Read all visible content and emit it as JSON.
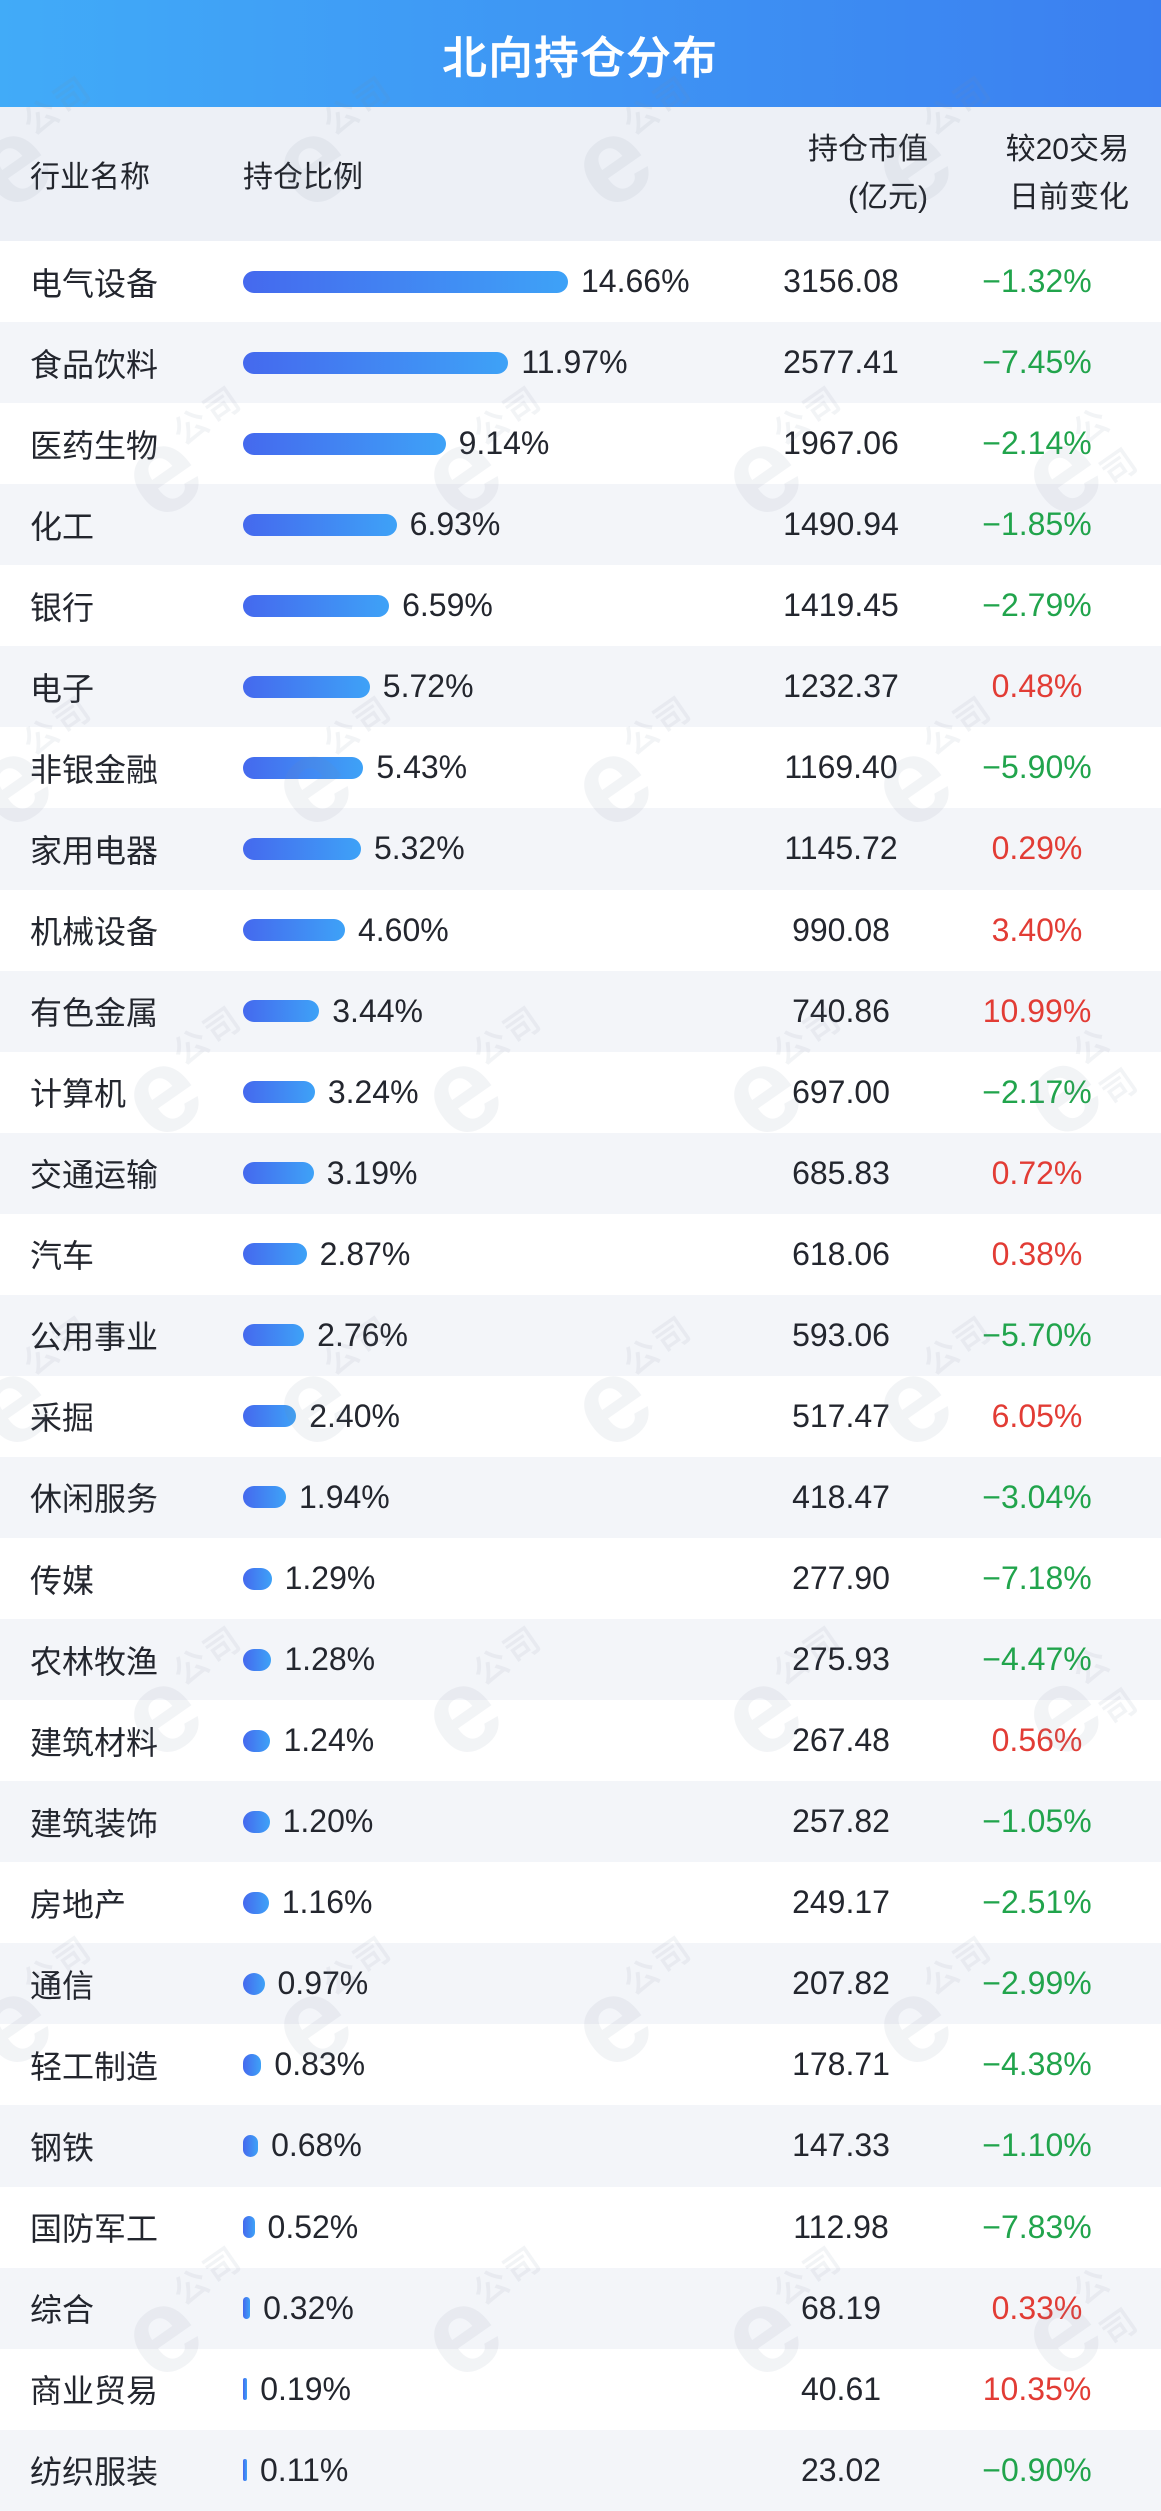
{
  "title": "北向持仓分布",
  "watermark": {
    "letter": "e",
    "text": "公司"
  },
  "columns": {
    "industry": "行业名称",
    "ratio": "持仓比例",
    "value_line1": "持仓市值",
    "value_line2": "(亿元)",
    "change_line1": "较20交易",
    "change_line2": "日前变化"
  },
  "colors": {
    "banner_start": "#41abf8",
    "banner_end": "#3b7ff0",
    "bar_start": "#4569ee",
    "bar_end": "#3ea2f7",
    "up_red": "#e23c35",
    "down_green": "#21a44c",
    "alt_row_bg": "#f3f5f9",
    "header_bg": "#edf0f6"
  },
  "rows": [
    {
      "name": "电气设备",
      "ratio": "14.66%",
      "value": "3156.08",
      "change": "−1.32%",
      "dir": "down"
    },
    {
      "name": "食品饮料",
      "ratio": "11.97%",
      "value": "2577.41",
      "change": "−7.45%",
      "dir": "down"
    },
    {
      "name": "医药生物",
      "ratio": "9.14%",
      "value": "1967.06",
      "change": "−2.14%",
      "dir": "down"
    },
    {
      "name": "化工",
      "ratio": "6.93%",
      "value": "1490.94",
      "change": "−1.85%",
      "dir": "down"
    },
    {
      "name": "银行",
      "ratio": "6.59%",
      "value": "1419.45",
      "change": "−2.79%",
      "dir": "down"
    },
    {
      "name": "电子",
      "ratio": "5.72%",
      "value": "1232.37",
      "change": "0.48%",
      "dir": "up"
    },
    {
      "name": "非银金融",
      "ratio": "5.43%",
      "value": "1169.40",
      "change": "−5.90%",
      "dir": "down"
    },
    {
      "name": "家用电器",
      "ratio": "5.32%",
      "value": "1145.72",
      "change": "0.29%",
      "dir": "up"
    },
    {
      "name": "机械设备",
      "ratio": "4.60%",
      "value": "990.08",
      "change": "3.40%",
      "dir": "up"
    },
    {
      "name": "有色金属",
      "ratio": "3.44%",
      "value": "740.86",
      "change": "10.99%",
      "dir": "up"
    },
    {
      "name": "计算机",
      "ratio": "3.24%",
      "value": "697.00",
      "change": "−2.17%",
      "dir": "down"
    },
    {
      "name": "交通运输",
      "ratio": "3.19%",
      "value": "685.83",
      "change": "0.72%",
      "dir": "up"
    },
    {
      "name": "汽车",
      "ratio": "2.87%",
      "value": "618.06",
      "change": "0.38%",
      "dir": "up"
    },
    {
      "name": "公用事业",
      "ratio": "2.76%",
      "value": "593.06",
      "change": "−5.70%",
      "dir": "down"
    },
    {
      "name": "采掘",
      "ratio": "2.40%",
      "value": "517.47",
      "change": "6.05%",
      "dir": "up"
    },
    {
      "name": "休闲服务",
      "ratio": "1.94%",
      "value": "418.47",
      "change": "−3.04%",
      "dir": "down"
    },
    {
      "name": "传媒",
      "ratio": "1.29%",
      "value": "277.90",
      "change": "−7.18%",
      "dir": "down"
    },
    {
      "name": "农林牧渔",
      "ratio": "1.28%",
      "value": "275.93",
      "change": "−4.47%",
      "dir": "down"
    },
    {
      "name": "建筑材料",
      "ratio": "1.24%",
      "value": "267.48",
      "change": "0.56%",
      "dir": "up"
    },
    {
      "name": "建筑装饰",
      "ratio": "1.20%",
      "value": "257.82",
      "change": "−1.05%",
      "dir": "down"
    },
    {
      "name": "房地产",
      "ratio": "1.16%",
      "value": "249.17",
      "change": "−2.51%",
      "dir": "down"
    },
    {
      "name": "通信",
      "ratio": "0.97%",
      "value": "207.82",
      "change": "−2.99%",
      "dir": "down"
    },
    {
      "name": "轻工制造",
      "ratio": "0.83%",
      "value": "178.71",
      "change": "−4.38%",
      "dir": "down"
    },
    {
      "name": "钢铁",
      "ratio": "0.68%",
      "value": "147.33",
      "change": "−1.10%",
      "dir": "down"
    },
    {
      "name": "国防军工",
      "ratio": "0.52%",
      "value": "112.98",
      "change": "−7.83%",
      "dir": "down"
    },
    {
      "name": "综合",
      "ratio": "0.32%",
      "value": "68.19",
      "change": "0.33%",
      "dir": "up"
    },
    {
      "name": "商业贸易",
      "ratio": "0.19%",
      "value": "40.61",
      "change": "10.35%",
      "dir": "up"
    },
    {
      "name": "纺织服装",
      "ratio": "0.11%",
      "value": "23.02",
      "change": "−0.90%",
      "dir": "down"
    }
  ],
  "chart_data": {
    "type": "bar",
    "title": "北向持仓分布",
    "orientation": "horizontal",
    "categories": [
      "电气设备",
      "食品饮料",
      "医药生物",
      "化工",
      "银行",
      "电子",
      "非银金融",
      "家用电器",
      "机械设备",
      "有色金属",
      "计算机",
      "交通运输",
      "汽车",
      "公用事业",
      "采掘",
      "休闲服务",
      "传媒",
      "农林牧渔",
      "建筑材料",
      "建筑装饰",
      "房地产",
      "通信",
      "轻工制造",
      "钢铁",
      "国防军工",
      "综合",
      "商业贸易",
      "纺织服装"
    ],
    "series": [
      {
        "name": "持仓比例(%)",
        "values": [
          14.66,
          11.97,
          9.14,
          6.93,
          6.59,
          5.72,
          5.43,
          5.32,
          4.6,
          3.44,
          3.24,
          3.19,
          2.87,
          2.76,
          2.4,
          1.94,
          1.29,
          1.28,
          1.24,
          1.2,
          1.16,
          0.97,
          0.83,
          0.68,
          0.52,
          0.32,
          0.19,
          0.11
        ]
      },
      {
        "name": "持仓市值(亿元)",
        "values": [
          3156.08,
          2577.41,
          1967.06,
          1490.94,
          1419.45,
          1232.37,
          1169.4,
          1145.72,
          990.08,
          740.86,
          697.0,
          685.83,
          618.06,
          593.06,
          517.47,
          418.47,
          277.9,
          275.93,
          267.48,
          257.82,
          249.17,
          207.82,
          178.71,
          147.33,
          112.98,
          68.19,
          40.61,
          23.02
        ]
      },
      {
        "name": "较20交易日前变化(%)",
        "values": [
          -1.32,
          -7.45,
          -2.14,
          -1.85,
          -2.79,
          0.48,
          -5.9,
          0.29,
          3.4,
          10.99,
          -2.17,
          0.72,
          0.38,
          -5.7,
          6.05,
          -3.04,
          -7.18,
          -4.47,
          0.56,
          -1.05,
          -2.51,
          -2.99,
          -4.38,
          -1.1,
          -7.83,
          0.33,
          10.35,
          -0.9
        ]
      }
    ],
    "xlim": [
      0,
      14.66
    ],
    "grid": false,
    "legend": false,
    "value_labels": true
  }
}
